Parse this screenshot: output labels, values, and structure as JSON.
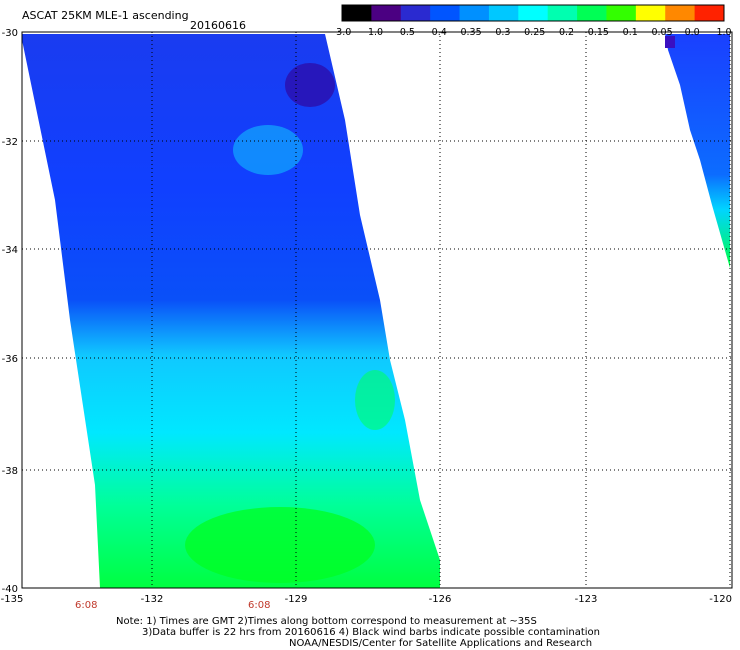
{
  "header": {
    "title": "ASCAT 25KM MLE-1 ascending",
    "date": "20160616"
  },
  "colorbar": {
    "labels": [
      "-3.0",
      "-1.0",
      "-0.5",
      "-0.4",
      "-0.35",
      "-0.3",
      "-0.25",
      "-0.2",
      "-0.15",
      "-0.1",
      "-0.05",
      "0.0",
      "1.0"
    ],
    "colors": [
      "#000000",
      "#4b0082",
      "#2a2ad0",
      "#0055ff",
      "#0090ff",
      "#00c8ff",
      "#00ffff",
      "#00ffb0",
      "#00ff55",
      "#33ff00",
      "#ffff00",
      "#ff8800",
      "#ff2200"
    ]
  },
  "map": {
    "lat_labels": [
      "-30",
      "-32",
      "-34",
      "-36",
      "-38",
      "-40"
    ],
    "lon_labels": [
      "-135",
      "-132",
      "-129",
      "-126",
      "-123",
      "-120"
    ],
    "times": [
      "6:08",
      "6:08"
    ]
  },
  "notes": {
    "line1": "Note: 1) Times are GMT 2)Times along bottom correspond to measurement at ~35S",
    "line2": "3)Data buffer is 22 hrs from 20160616 4) Black wind barbs indicate possible contamination",
    "line3": "NOAA/NESDIS/Center for Satellite Applications and Research"
  }
}
